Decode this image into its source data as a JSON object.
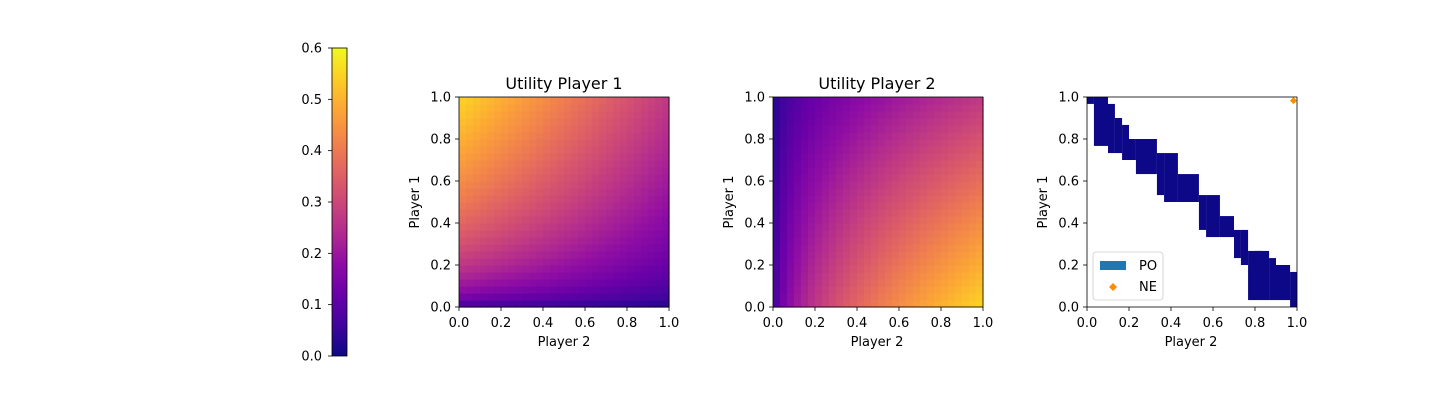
{
  "colormap": "plasma",
  "colorbar": {
    "ticks": [
      "0.0",
      "0.1",
      "0.2",
      "0.3",
      "0.4",
      "0.5",
      "0.6"
    ],
    "range": [
      0,
      0.6
    ]
  },
  "chart_data": [
    {
      "type": "heatmap",
      "title": "Utility Player 1",
      "xlabel": "Player 2",
      "ylabel": "Player 1",
      "xlim": [
        0,
        1
      ],
      "ylim": [
        0,
        1
      ],
      "xticks": [
        "0.0",
        "0.2",
        "0.4",
        "0.6",
        "0.8",
        "1.0"
      ],
      "yticks": [
        "0.0",
        "0.2",
        "0.4",
        "0.6",
        "0.8",
        "1.0"
      ],
      "grid_size": 30,
      "vmin": 0,
      "vmax": 0.6,
      "description_of_values": "utility of Player 1 as a function of Player 2 strategy (x) and Player 1 strategy (y)"
    },
    {
      "type": "heatmap",
      "title": "Utility Player 2",
      "xlabel": "Player 2",
      "ylabel": "Player 1",
      "xlim": [
        0,
        1
      ],
      "ylim": [
        0,
        1
      ],
      "xticks": [
        "0.0",
        "0.2",
        "0.4",
        "0.6",
        "0.8",
        "1.0"
      ],
      "yticks": [
        "0.0",
        "0.2",
        "0.4",
        "0.6",
        "0.8",
        "1.0"
      ],
      "grid_size": 30,
      "vmin": 0,
      "vmax": 0.6
    },
    {
      "type": "scatter",
      "title": "",
      "xlabel": "Player 2",
      "ylabel": "Player 1",
      "xlim": [
        0,
        1
      ],
      "ylim": [
        0,
        1
      ],
      "xticks": [
        "0.0",
        "0.2",
        "0.4",
        "0.6",
        "0.8",
        "1.0"
      ],
      "yticks": [
        "0.0",
        "0.2",
        "0.4",
        "0.6",
        "0.8",
        "1.0"
      ],
      "legend_position": "lower-left",
      "series": [
        {
          "name": "PO",
          "color": "#0d0887",
          "legend_color": "#1f77b4",
          "marker": "square",
          "cell_size": 0.0333,
          "bands": [
            {
              "x0": 0.0,
              "x1": 0.033,
              "y0": 0.967,
              "y1": 1.0
            },
            {
              "x0": 0.033,
              "x1": 0.1,
              "y0": 0.767,
              "y1": 1.0
            },
            {
              "x0": 0.1,
              "x1": 0.133,
              "y0": 0.733,
              "y1": 0.967
            },
            {
              "x0": 0.133,
              "x1": 0.167,
              "y0": 0.733,
              "y1": 0.9
            },
            {
              "x0": 0.167,
              "x1": 0.2,
              "y0": 0.7,
              "y1": 0.867
            },
            {
              "x0": 0.2,
              "x1": 0.233,
              "y0": 0.7,
              "y1": 0.8
            },
            {
              "x0": 0.233,
              "x1": 0.333,
              "y0": 0.633,
              "y1": 0.8
            },
            {
              "x0": 0.333,
              "x1": 0.367,
              "y0": 0.533,
              "y1": 0.733
            },
            {
              "x0": 0.367,
              "x1": 0.433,
              "y0": 0.5,
              "y1": 0.733
            },
            {
              "x0": 0.433,
              "x1": 0.533,
              "y0": 0.5,
              "y1": 0.633
            },
            {
              "x0": 0.533,
              "x1": 0.567,
              "y0": 0.367,
              "y1": 0.533
            },
            {
              "x0": 0.567,
              "x1": 0.633,
              "y0": 0.333,
              "y1": 0.533
            },
            {
              "x0": 0.633,
              "x1": 0.7,
              "y0": 0.333,
              "y1": 0.433
            },
            {
              "x0": 0.7,
              "x1": 0.733,
              "y0": 0.233,
              "y1": 0.367
            },
            {
              "x0": 0.733,
              "x1": 0.767,
              "y0": 0.2,
              "y1": 0.367
            },
            {
              "x0": 0.767,
              "x1": 0.833,
              "y0": 0.2,
              "y1": 0.267
            },
            {
              "x0": 0.767,
              "x1": 0.8,
              "y0": 0.033,
              "y1": 0.2
            },
            {
              "x0": 0.8,
              "x1": 0.867,
              "y0": 0.033,
              "y1": 0.267
            },
            {
              "x0": 0.867,
              "x1": 0.9,
              "y0": 0.033,
              "y1": 0.233
            },
            {
              "x0": 0.9,
              "x1": 0.967,
              "y0": 0.033,
              "y1": 0.2
            },
            {
              "x0": 0.967,
              "x1": 1.0,
              "y0": 0.0,
              "y1": 0.167
            }
          ]
        },
        {
          "name": "NE",
          "color": "#ff8c00",
          "marker": "diamond",
          "points": [
            {
              "x": 0.983,
              "y": 0.983
            }
          ]
        }
      ]
    }
  ]
}
